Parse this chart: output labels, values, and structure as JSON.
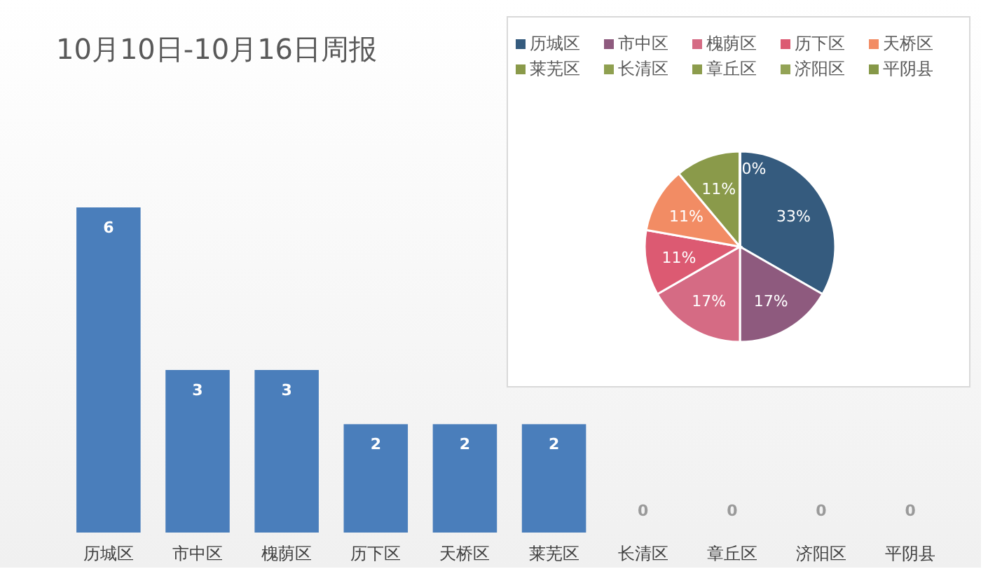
{
  "chart_data": [
    {
      "type": "bar",
      "title": "10月10日-10月16日周报",
      "categories": [
        "历城区",
        "市中区",
        "槐荫区",
        "历下区",
        "天桥区",
        "莱芜区",
        "长清区",
        "章丘区",
        "济阳区",
        "平阴县"
      ],
      "values": [
        6,
        3,
        3,
        2,
        2,
        2,
        0,
        0,
        0,
        0
      ],
      "color": "#4a7ebb",
      "data_labels": true
    },
    {
      "type": "pie",
      "categories": [
        "历城区",
        "市中区",
        "槐荫区",
        "历下区",
        "天桥区",
        "莱芜区",
        "长清区",
        "章丘区",
        "济阳区",
        "平阴县"
      ],
      "values": [
        33.3,
        16.7,
        16.7,
        11.1,
        11.1,
        11.1,
        0,
        0,
        0,
        0
      ],
      "value_labels": [
        "33%",
        "17%",
        "17%",
        "11%",
        "11%",
        "11%",
        "0%",
        null,
        null,
        null
      ],
      "colors": [
        "#355b7e",
        "#8e5a7e",
        "#d56b84",
        "#dc5a72",
        "#f28c64",
        "#8a9a4a",
        "#8fa050",
        "#8c9c4c",
        "#93a356",
        "#869848"
      ],
      "legend": "top"
    }
  ]
}
